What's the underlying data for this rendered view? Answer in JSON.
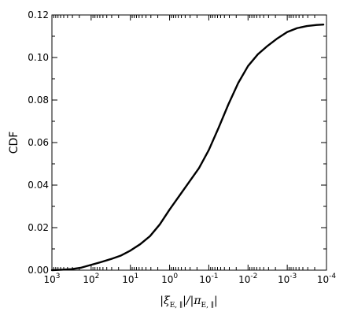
{
  "chart_data": {
    "type": "line",
    "title": "",
    "xlabel": "|ξ_{E,∥}|/|π_{E,∥}|",
    "ylabel": "CDF",
    "x_scale": "log",
    "x_reversed": true,
    "xlim": [
      1000,
      0.0001
    ],
    "ylim": [
      0,
      0.12
    ],
    "grid": false,
    "legend": "none",
    "line_color": "#000000",
    "x_ticks": [
      {
        "value": 1000,
        "base": "10",
        "exp": "3"
      },
      {
        "value": 100,
        "base": "10",
        "exp": "2"
      },
      {
        "value": 10,
        "base": "10",
        "exp": "1"
      },
      {
        "value": 1,
        "base": "10",
        "exp": "0"
      },
      {
        "value": 0.1,
        "base": "10",
        "exp": "-1"
      },
      {
        "value": 0.01,
        "base": "10",
        "exp": "-2"
      },
      {
        "value": 0.001,
        "base": "10",
        "exp": "-3"
      },
      {
        "value": 0.0001,
        "base": "10",
        "exp": "-4"
      }
    ],
    "y_ticks": [
      {
        "value": 0.0,
        "label": "0.00"
      },
      {
        "value": 0.02,
        "label": "0.02"
      },
      {
        "value": 0.04,
        "label": "0.04"
      },
      {
        "value": 0.06,
        "label": "0.06"
      },
      {
        "value": 0.08,
        "label": "0.08"
      },
      {
        "value": 0.1,
        "label": "0.10"
      },
      {
        "value": 0.12,
        "label": "0.12"
      }
    ],
    "series": [
      {
        "x": [
          1000,
          562,
          316,
          178,
          100,
          56.2,
          31.6,
          17.8,
          10,
          5.62,
          3.16,
          1.78,
          1,
          0.562,
          0.316,
          0.178,
          0.1,
          0.0562,
          0.0316,
          0.0178,
          0.01,
          0.00562,
          0.00316,
          0.00178,
          0.001,
          0.000562,
          0.000316,
          0.000178,
          0.00012
        ],
        "y": [
          0.0,
          0.0002,
          0.0005,
          0.0012,
          0.0025,
          0.0038,
          0.0052,
          0.0068,
          0.0092,
          0.0122,
          0.016,
          0.0215,
          0.0285,
          0.035,
          0.0415,
          0.048,
          0.0565,
          0.067,
          0.078,
          0.088,
          0.096,
          0.1015,
          0.1055,
          0.109,
          0.112,
          0.1138,
          0.1148,
          0.1153,
          0.1155
        ]
      }
    ]
  }
}
